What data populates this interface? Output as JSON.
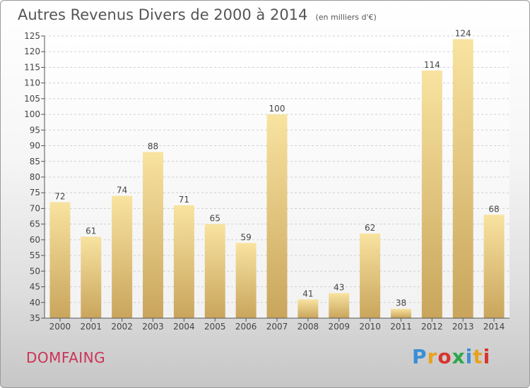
{
  "title": "Autres Revenus Divers de 2000 à 2014",
  "subtitle": "(en milliers d'€)",
  "city": "DOMFAING",
  "brand": "Proxiti",
  "colors": {
    "bar_light": "#f8e3a0",
    "bar_dark": "#c9a55c",
    "city": "#cc3355",
    "grid": "#d0d0d0"
  },
  "chart_data": {
    "type": "bar",
    "title": "Autres Revenus Divers de 2000 à 2014",
    "subtitle": "(en milliers d'€)",
    "xlabel": "",
    "ylabel": "",
    "categories": [
      "2000",
      "2001",
      "2002",
      "2003",
      "2004",
      "2005",
      "2006",
      "2007",
      "2008",
      "2009",
      "2010",
      "2011",
      "2012",
      "2013",
      "2014"
    ],
    "values": [
      72,
      61,
      74,
      88,
      71,
      65,
      59,
      100,
      41,
      43,
      62,
      38,
      114,
      124,
      68
    ],
    "ylim": [
      35,
      125
    ],
    "yticks": [
      35,
      40,
      45,
      50,
      55,
      60,
      65,
      70,
      75,
      80,
      85,
      90,
      95,
      100,
      105,
      110,
      115,
      120,
      125
    ],
    "grid": true,
    "legend": "none"
  }
}
